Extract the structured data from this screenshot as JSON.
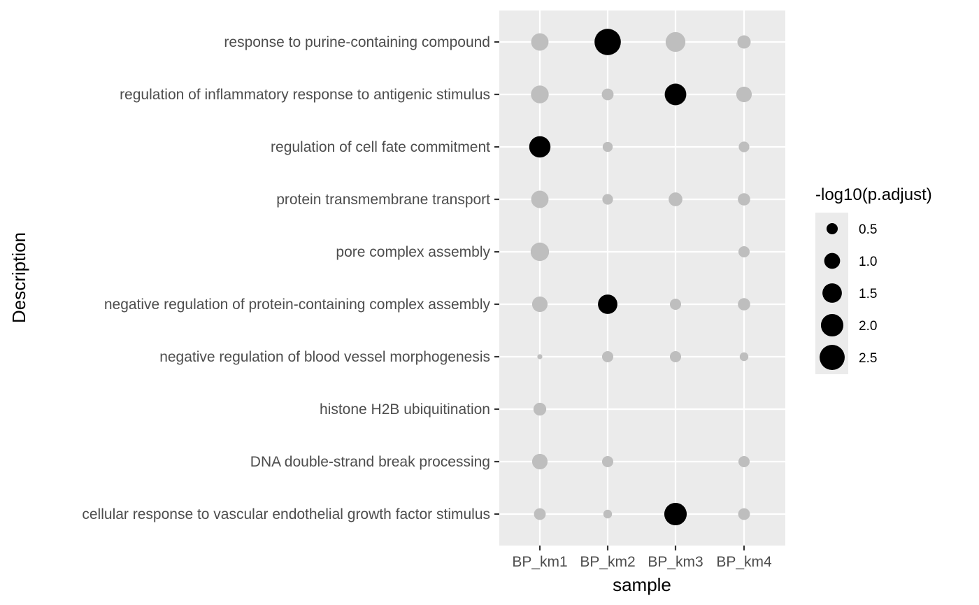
{
  "chart_data": {
    "type": "scatter",
    "title": "",
    "xlabel": "sample",
    "ylabel": "Description",
    "categories_x": [
      "BP_km1",
      "BP_km2",
      "BP_km3",
      "BP_km4"
    ],
    "categories_y": [
      "response to purine-containing compound",
      "regulation of inflammatory response to antigenic stimulus",
      "regulation of cell fate commitment",
      "protein transmembrane transport",
      "pore complex assembly",
      "negative regulation of protein-containing complex assembly",
      "negative regulation of blood vessel morphogenesis",
      "histone H2B ubiquitination",
      "DNA double-strand break processing",
      "cellular response to vascular endothelial growth factor stimulus"
    ],
    "size_range": [
      0,
      2.8
    ],
    "legend": {
      "title": "-log10(p.adjust)",
      "position": "right",
      "breaks": [
        0.5,
        1.0,
        1.5,
        2.0,
        2.5
      ],
      "labels": [
        "0.5",
        "1.0",
        "1.5",
        "2.0",
        "2.5"
      ]
    },
    "colors": {
      "highlight": "#000000",
      "other": "#bebebe",
      "panel": "#ebebeb",
      "grid": "#ffffff"
    },
    "points": [
      {
        "x": "BP_km1",
        "y": "response to purine-containing compound",
        "size": 1.2,
        "highlight": false
      },
      {
        "x": "BP_km2",
        "y": "response to purine-containing compound",
        "size": 2.75,
        "highlight": true
      },
      {
        "x": "BP_km3",
        "y": "response to purine-containing compound",
        "size": 1.55,
        "highlight": false
      },
      {
        "x": "BP_km4",
        "y": "response to purine-containing compound",
        "size": 0.7,
        "highlight": false
      },
      {
        "x": "BP_km1",
        "y": "regulation of inflammatory response to antigenic stimulus",
        "size": 1.25,
        "highlight": false
      },
      {
        "x": "BP_km2",
        "y": "regulation of inflammatory response to antigenic stimulus",
        "size": 0.55,
        "highlight": false
      },
      {
        "x": "BP_km3",
        "y": "regulation of inflammatory response to antigenic stimulus",
        "size": 1.85,
        "highlight": true
      },
      {
        "x": "BP_km4",
        "y": "regulation of inflammatory response to antigenic stimulus",
        "size": 0.95,
        "highlight": false
      },
      {
        "x": "BP_km1",
        "y": "regulation of cell fate commitment",
        "size": 1.8,
        "highlight": true
      },
      {
        "x": "BP_km2",
        "y": "regulation of cell fate commitment",
        "size": 0.4,
        "highlight": false
      },
      {
        "x": "BP_km4",
        "y": "regulation of cell fate commitment",
        "size": 0.45,
        "highlight": false
      },
      {
        "x": "BP_km1",
        "y": "protein transmembrane transport",
        "size": 1.2,
        "highlight": false
      },
      {
        "x": "BP_km2",
        "y": "protein transmembrane transport",
        "size": 0.45,
        "highlight": false
      },
      {
        "x": "BP_km3",
        "y": "protein transmembrane transport",
        "size": 0.75,
        "highlight": false
      },
      {
        "x": "BP_km4",
        "y": "protein transmembrane transport",
        "size": 0.6,
        "highlight": false
      },
      {
        "x": "BP_km1",
        "y": "pore complex assembly",
        "size": 1.35,
        "highlight": false
      },
      {
        "x": "BP_km4",
        "y": "pore complex assembly",
        "size": 0.5,
        "highlight": false
      },
      {
        "x": "BP_km1",
        "y": "negative regulation of protein-containing complex assembly",
        "size": 0.95,
        "highlight": false
      },
      {
        "x": "BP_km2",
        "y": "negative regulation of protein-containing complex assembly",
        "size": 1.5,
        "highlight": true
      },
      {
        "x": "BP_km3",
        "y": "negative regulation of protein-containing complex assembly",
        "size": 0.5,
        "highlight": false
      },
      {
        "x": "BP_km4",
        "y": "negative regulation of protein-containing complex assembly",
        "size": 0.6,
        "highlight": false
      },
      {
        "x": "BP_km1",
        "y": "negative regulation of blood vessel morphogenesis",
        "size": 0.1,
        "highlight": false
      },
      {
        "x": "BP_km2",
        "y": "negative regulation of blood vessel morphogenesis",
        "size": 0.5,
        "highlight": false
      },
      {
        "x": "BP_km3",
        "y": "negative regulation of blood vessel morphogenesis",
        "size": 0.5,
        "highlight": false
      },
      {
        "x": "BP_km4",
        "y": "negative regulation of blood vessel morphogenesis",
        "size": 0.3,
        "highlight": false
      },
      {
        "x": "BP_km1",
        "y": "histone H2B ubiquitination",
        "size": 0.65,
        "highlight": false
      },
      {
        "x": "BP_km1",
        "y": "DNA double-strand break processing",
        "size": 0.95,
        "highlight": false
      },
      {
        "x": "BP_km2",
        "y": "DNA double-strand break processing",
        "size": 0.5,
        "highlight": false
      },
      {
        "x": "BP_km4",
        "y": "DNA double-strand break processing",
        "size": 0.5,
        "highlight": false
      },
      {
        "x": "BP_km1",
        "y": "cellular response to vascular endothelial growth factor stimulus",
        "size": 0.55,
        "highlight": false
      },
      {
        "x": "BP_km2",
        "y": "cellular response to vascular endothelial growth factor stimulus",
        "size": 0.3,
        "highlight": false
      },
      {
        "x": "BP_km3",
        "y": "cellular response to vascular endothelial growth factor stimulus",
        "size": 2.0,
        "highlight": true
      },
      {
        "x": "BP_km4",
        "y": "cellular response to vascular endothelial growth factor stimulus",
        "size": 0.55,
        "highlight": false
      }
    ]
  }
}
